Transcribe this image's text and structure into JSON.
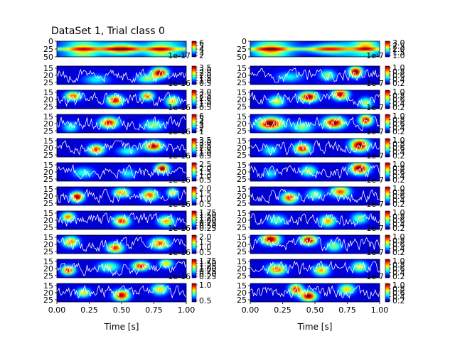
{
  "chart_data": {
    "type": "heatmap",
    "title": "DataSet 1, Trial class 0",
    "xlabel": "Time [s]",
    "x_ticks": [
      "0.00",
      "0.25",
      "0.50",
      "0.75",
      "1.00"
    ],
    "colormap": "jet",
    "trace_color": "#ffffff",
    "columns": [
      {
        "rows": [
          {
            "y_ticks": [
              "0",
              "25",
              "50"
            ],
            "cbar_ticks": [
              "6",
              "5",
              "4",
              "3",
              "2"
            ],
            "scale_note": "1e-17"
          },
          {
            "y_ticks": [
              "15",
              "20",
              "25"
            ],
            "cbar_ticks": [
              "3.5",
              "3.0",
              "2.5",
              "2.0",
              "1.5",
              "1.0",
              "0.5"
            ],
            "scale_note": "1e-16"
          },
          {
            "y_ticks": [
              "15",
              "20",
              "25"
            ],
            "cbar_ticks": [
              "3.0",
              "2.5",
              "2.0",
              "1.5",
              "1.0",
              "0.5"
            ],
            "scale_note": "1e-16"
          },
          {
            "y_ticks": [
              "15",
              "20",
              "25"
            ],
            "cbar_ticks": [
              "6",
              "5",
              "4",
              "3",
              "2",
              "1"
            ],
            "scale_note": "1e-16"
          },
          {
            "y_ticks": [
              "15",
              "20",
              "25"
            ],
            "cbar_ticks": [
              "3.5",
              "3.0",
              "2.5",
              "2.0",
              "1.5",
              "1.0",
              "0.5"
            ],
            "scale_note": "1e-16"
          },
          {
            "y_ticks": [
              "15",
              "20",
              "25"
            ],
            "cbar_ticks": [
              "2.5",
              "2.0",
              "1.5",
              "1.0",
              "0.5"
            ],
            "scale_note": "1e-16"
          },
          {
            "y_ticks": [
              "15",
              "20",
              "25"
            ],
            "cbar_ticks": [
              "2.0",
              "1.5",
              "1.0",
              "0.5"
            ],
            "scale_note": "1e-16"
          },
          {
            "y_ticks": [
              "15",
              "20",
              "25"
            ],
            "cbar_ticks": [
              "1.75",
              "1.50",
              "1.25",
              "1.00",
              "0.75",
              "0.50",
              "0.25"
            ],
            "scale_note": "1e-16"
          },
          {
            "y_ticks": [
              "15",
              "20",
              "25"
            ],
            "cbar_ticks": [
              "2.0",
              "1.5",
              "1.0",
              "0.5"
            ],
            "scale_note": "1e-16"
          },
          {
            "y_ticks": [
              "15",
              "20",
              "25"
            ],
            "cbar_ticks": [
              "1.75",
              "1.50",
              "1.25",
              "1.00",
              "0.75",
              "0.50",
              "0.25"
            ],
            "scale_note": "1e-16"
          },
          {
            "y_ticks": [
              "15",
              "20",
              "25"
            ],
            "cbar_ticks": [
              "1.0",
              "0.5"
            ],
            "scale_note": ""
          }
        ]
      },
      {
        "rows": [
          {
            "y_ticks": [
              "0",
              "25",
              "50"
            ],
            "cbar_ticks": [
              "3.0",
              "2.5",
              "2.0",
              "1.5",
              "1.0"
            ],
            "scale_note": "1e-7"
          },
          {
            "y_ticks": [
              "15",
              "20",
              "25"
            ],
            "cbar_ticks": [
              "1.0",
              "0.8",
              "0.6",
              "0.4",
              "0.2"
            ],
            "scale_note": "1e-7"
          },
          {
            "y_ticks": [
              "15",
              "20",
              "25"
            ],
            "cbar_ticks": [
              "1.0",
              "0.8",
              "0.6",
              "0.4",
              "0.2"
            ],
            "scale_note": "1e-7"
          },
          {
            "y_ticks": [
              "15",
              "20",
              "25"
            ],
            "cbar_ticks": [
              "1.0",
              "0.8",
              "0.6",
              "0.4",
              "0.2"
            ],
            "scale_note": "1e-7"
          },
          {
            "y_ticks": [
              "15",
              "20",
              "25"
            ],
            "cbar_ticks": [
              "1.0",
              "0.8",
              "0.6",
              "0.4",
              "0.2"
            ],
            "scale_note": "1e-7"
          },
          {
            "y_ticks": [
              "15",
              "20",
              "25"
            ],
            "cbar_ticks": [
              "1.0",
              "0.8",
              "0.6",
              "0.4",
              "0.2"
            ],
            "scale_note": "1e-7"
          },
          {
            "y_ticks": [
              "15",
              "20",
              "25"
            ],
            "cbar_ticks": [
              "1.0",
              "0.8",
              "0.6",
              "0.4",
              "0.2"
            ],
            "scale_note": "1e-7"
          },
          {
            "y_ticks": [
              "15",
              "20",
              "25"
            ],
            "cbar_ticks": [
              "1.0",
              "0.8",
              "0.6",
              "0.4",
              "0.2"
            ],
            "scale_note": "1e-7"
          },
          {
            "y_ticks": [
              "15",
              "20",
              "25"
            ],
            "cbar_ticks": [
              "1.0",
              "0.8",
              "0.6",
              "0.4",
              "0.2"
            ],
            "scale_note": "1e-7"
          },
          {
            "y_ticks": [
              "15",
              "20",
              "25"
            ],
            "cbar_ticks": [
              "1.0",
              "0.8",
              "0.6",
              "0.4",
              "0.2"
            ],
            "scale_note": "1e-7"
          },
          {
            "y_ticks": [
              "15",
              "20",
              "25"
            ],
            "cbar_ticks": [
              "1.0",
              "0.8",
              "0.6",
              "0.4",
              "0.2"
            ],
            "scale_note": ""
          }
        ]
      }
    ],
    "blobs": [
      [
        [
          [
            0.5,
            0.5,
            0.7,
            0.15,
            0.45
          ],
          [
            0.2,
            0.55,
            0.35,
            0.1,
            0.5
          ],
          [
            0.8,
            0.55,
            0.4,
            0.1,
            0.45
          ]
        ],
        [
          [
            0.8,
            0.35,
            0.95,
            0.06,
            0.28
          ],
          [
            0.7,
            0.7,
            0.45,
            0.08,
            0.25
          ],
          [
            0.3,
            0.75,
            0.3,
            0.1,
            0.3
          ]
        ],
        [
          [
            0.12,
            0.3,
            0.75,
            0.06,
            0.25
          ],
          [
            0.45,
            0.55,
            0.85,
            0.06,
            0.3
          ],
          [
            0.7,
            0.3,
            0.75,
            0.05,
            0.25
          ],
          [
            0.9,
            0.6,
            0.65,
            0.05,
            0.3
          ]
        ],
        [
          [
            0.4,
            0.45,
            0.85,
            0.07,
            0.3
          ],
          [
            0.75,
            0.6,
            0.45,
            0.08,
            0.3
          ],
          [
            0.1,
            0.7,
            0.35,
            0.06,
            0.3
          ]
        ],
        [
          [
            0.3,
            0.6,
            0.8,
            0.06,
            0.28
          ],
          [
            0.75,
            0.4,
            0.9,
            0.07,
            0.28
          ],
          [
            0.55,
            0.7,
            0.35,
            0.08,
            0.25
          ]
        ],
        [
          [
            0.82,
            0.3,
            0.95,
            0.05,
            0.25
          ],
          [
            0.2,
            0.55,
            0.35,
            0.08,
            0.3
          ],
          [
            0.55,
            0.6,
            0.3,
            0.06,
            0.3
          ]
        ],
        [
          [
            0.15,
            0.55,
            0.95,
            0.05,
            0.28
          ],
          [
            0.5,
            0.3,
            0.7,
            0.06,
            0.25
          ],
          [
            0.72,
            0.45,
            0.75,
            0.06,
            0.3
          ],
          [
            0.9,
            0.3,
            0.6,
            0.04,
            0.25
          ]
        ],
        [
          [
            0.08,
            0.3,
            0.7,
            0.05,
            0.25
          ],
          [
            0.5,
            0.55,
            0.8,
            0.06,
            0.3
          ],
          [
            0.85,
            0.55,
            0.65,
            0.06,
            0.3
          ]
        ],
        [
          [
            0.1,
            0.35,
            0.7,
            0.06,
            0.3
          ],
          [
            0.45,
            0.7,
            0.8,
            0.06,
            0.28
          ],
          [
            0.8,
            0.45,
            0.75,
            0.07,
            0.3
          ]
        ],
        [
          [
            0.08,
            0.6,
            0.85,
            0.05,
            0.25
          ],
          [
            0.4,
            0.4,
            0.45,
            0.08,
            0.3
          ],
          [
            0.65,
            0.35,
            0.85,
            0.06,
            0.25
          ],
          [
            0.85,
            0.2,
            0.6,
            0.05,
            0.25
          ]
        ],
        [
          [
            0.2,
            0.5,
            0.6,
            0.05,
            0.25
          ],
          [
            0.5,
            0.65,
            0.9,
            0.06,
            0.3
          ],
          [
            0.8,
            0.3,
            0.6,
            0.06,
            0.3
          ]
        ]
      ],
      [
        [
          [
            0.15,
            0.55,
            0.45,
            0.12,
            0.45
          ],
          [
            0.6,
            0.5,
            0.5,
            0.15,
            0.4
          ],
          [
            0.9,
            0.35,
            0.4,
            0.08,
            0.45
          ]
        ],
        [
          [
            0.82,
            0.3,
            1.0,
            0.05,
            0.3
          ],
          [
            0.6,
            0.5,
            0.45,
            0.06,
            0.3
          ],
          [
            0.3,
            0.6,
            0.3,
            0.1,
            0.3
          ]
        ],
        [
          [
            0.45,
            0.35,
            0.95,
            0.07,
            0.28
          ],
          [
            0.7,
            0.2,
            0.9,
            0.06,
            0.3
          ],
          [
            0.2,
            0.6,
            0.55,
            0.06,
            0.3
          ],
          [
            0.9,
            0.7,
            0.5,
            0.05,
            0.3
          ]
        ],
        [
          [
            0.15,
            0.5,
            1.0,
            0.1,
            0.35
          ],
          [
            0.65,
            0.45,
            0.95,
            0.08,
            0.32
          ],
          [
            0.9,
            0.3,
            0.9,
            0.05,
            0.3
          ],
          [
            0.4,
            0.7,
            0.45,
            0.08,
            0.3
          ]
        ],
        [
          [
            0.4,
            0.55,
            0.85,
            0.06,
            0.3
          ],
          [
            0.85,
            0.35,
            1.0,
            0.07,
            0.35
          ],
          [
            0.15,
            0.65,
            0.35,
            0.06,
            0.3
          ]
        ],
        [
          [
            0.85,
            0.3,
            1.0,
            0.07,
            0.32
          ],
          [
            0.45,
            0.45,
            0.5,
            0.06,
            0.3
          ],
          [
            0.15,
            0.6,
            0.3,
            0.05,
            0.3
          ]
        ],
        [
          [
            0.3,
            0.6,
            0.8,
            0.06,
            0.3
          ],
          [
            0.7,
            0.25,
            0.75,
            0.07,
            0.3
          ],
          [
            0.5,
            0.4,
            0.45,
            0.06,
            0.3
          ]
        ],
        [
          [
            0.6,
            0.55,
            0.65,
            0.06,
            0.3
          ],
          [
            0.2,
            0.5,
            0.4,
            0.07,
            0.3
          ],
          [
            0.85,
            0.4,
            0.45,
            0.06,
            0.3
          ]
        ],
        [
          [
            0.15,
            0.2,
            0.95,
            0.07,
            0.3
          ],
          [
            0.45,
            0.25,
            0.95,
            0.06,
            0.28
          ],
          [
            0.65,
            0.6,
            0.45,
            0.06,
            0.3
          ]
        ],
        [
          [
            0.2,
            0.55,
            0.75,
            0.07,
            0.3
          ],
          [
            0.55,
            0.6,
            0.65,
            0.06,
            0.3
          ],
          [
            0.85,
            0.4,
            0.55,
            0.06,
            0.3
          ]
        ],
        [
          [
            0.35,
            0.3,
            0.85,
            0.05,
            0.3
          ],
          [
            0.45,
            0.7,
            0.95,
            0.06,
            0.28
          ],
          [
            0.75,
            0.3,
            0.6,
            0.06,
            0.3
          ]
        ]
      ]
    ]
  }
}
